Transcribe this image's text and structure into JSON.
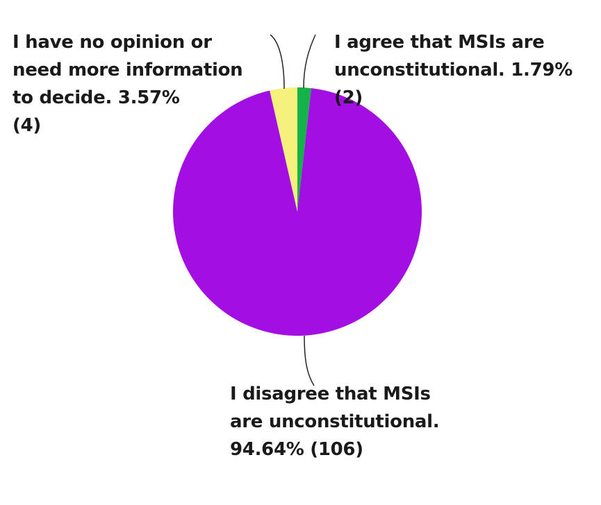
{
  "chart_data": {
    "type": "pie",
    "slices": [
      {
        "category": "I agree that MSIs are unconstitutional.",
        "percent": 1.79,
        "count": 2,
        "color": "#15b24a",
        "label_lines": [
          "I agree that MSIs are",
          "unconstitutional. 1.79%",
          "(2)"
        ]
      },
      {
        "category": "I disagree that MSIs are unconstitutional.",
        "percent": 94.64,
        "count": 106,
        "color": "#a30fe3",
        "label_lines": [
          "I disagree that MSIs",
          "are unconstitutional.",
          "94.64% (106)"
        ]
      },
      {
        "category": "I have no opinion or need more information to decide.",
        "percent": 3.57,
        "count": 4,
        "color": "#f6f07c",
        "label_lines": [
          "I have no opinion or",
          "need more information",
          "to decide. 3.57%",
          "(4)"
        ]
      }
    ]
  }
}
